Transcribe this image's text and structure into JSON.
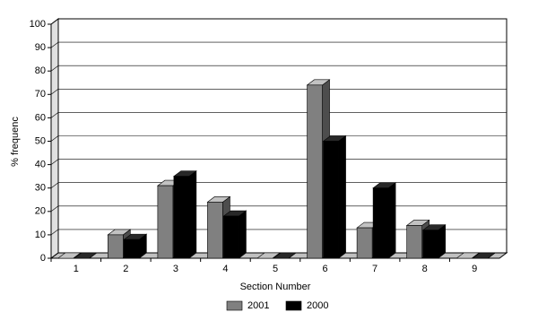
{
  "chart_data": {
    "type": "bar3d",
    "xlabel": "Section Number",
    "ylabel": "% frequenc",
    "categories": [
      "1",
      "2",
      "3",
      "4",
      "5",
      "6",
      "7",
      "8",
      "9"
    ],
    "series": [
      {
        "name": "2001",
        "color": "#808080",
        "values": [
          0,
          10,
          31,
          24,
          0,
          74,
          13,
          14,
          0
        ]
      },
      {
        "name": "2000",
        "color": "#000000",
        "values": [
          0,
          8,
          35,
          18,
          0,
          50,
          30,
          12,
          0
        ]
      }
    ],
    "ylim": [
      0,
      100
    ],
    "yticks": [
      0,
      10,
      20,
      30,
      40,
      50,
      60,
      70,
      80,
      90,
      100
    ],
    "grid": true,
    "legend": "bottom"
  }
}
